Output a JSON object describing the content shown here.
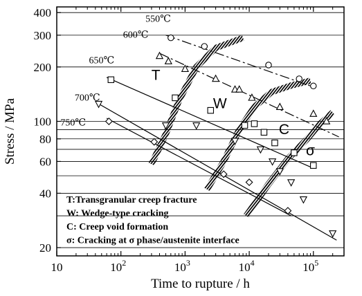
{
  "chart_data": {
    "type": "scatter",
    "xlabel": "Time to rupture / h",
    "ylabel": "Stress / MPa",
    "x_scale": "log",
    "y_scale": "log",
    "xlim": [
      10,
      300000
    ],
    "ylim": [
      18,
      430
    ],
    "grid": "horizontal",
    "x_ticks": [
      {
        "value": 10,
        "base": "10",
        "exp": ""
      },
      {
        "value": 100,
        "base": "10",
        "exp": "2"
      },
      {
        "value": 1000,
        "base": "10",
        "exp": "3"
      },
      {
        "value": 10000,
        "base": "10",
        "exp": "4"
      },
      {
        "value": 100000,
        "base": "10",
        "exp": "5"
      }
    ],
    "y_ticks": [
      {
        "value": 20,
        "label": "20"
      },
      {
        "value": 40,
        "label": "40"
      },
      {
        "value": 60,
        "label": "60"
      },
      {
        "value": 80,
        "label": "80"
      },
      {
        "value": 100,
        "label": "100"
      },
      {
        "value": 200,
        "label": "200"
      },
      {
        "value": 300,
        "label": "300"
      },
      {
        "value": 400,
        "label": "400"
      }
    ],
    "y_grid_lines": [
      20,
      30,
      40,
      50,
      60,
      70,
      80,
      90,
      100,
      200,
      300,
      400
    ],
    "series": [
      {
        "name": "550℃",
        "marker": "circle",
        "line": "dashdot",
        "label_at": [
          380,
          355
        ],
        "points": [
          [
            600,
            290
          ],
          [
            2000,
            260
          ],
          [
            20000,
            205
          ],
          [
            60000,
            172
          ],
          [
            100000,
            157
          ]
        ],
        "fit": [
          [
            500,
            300
          ],
          [
            100000,
            155
          ]
        ]
      },
      {
        "name": "600℃",
        "marker": "triangle",
        "line": "dashdot",
        "label_at": [
          170,
          290
        ],
        "points": [
          [
            400,
            230
          ],
          [
            550,
            215
          ],
          [
            1000,
            195
          ],
          [
            3000,
            172
          ],
          [
            6000,
            150
          ],
          [
            7000,
            150
          ],
          [
            11000,
            135
          ],
          [
            30000,
            120
          ],
          [
            100000,
            110
          ],
          [
            160000,
            100
          ]
        ],
        "fit": [
          [
            400,
            238
          ],
          [
            250000,
            82
          ]
        ]
      },
      {
        "name": "650℃",
        "marker": "square",
        "line": "solid",
        "label_at": [
          50,
          210
        ],
        "points": [
          [
            70,
            170
          ],
          [
            700,
            135
          ],
          [
            2500,
            115
          ],
          [
            8500,
            95
          ],
          [
            12000,
            97
          ],
          [
            17000,
            87
          ],
          [
            25000,
            76
          ],
          [
            50000,
            67
          ],
          [
            100000,
            57
          ]
        ],
        "fit": [
          [
            60,
            175
          ],
          [
            100000,
            55
          ]
        ]
      },
      {
        "name": "700℃",
        "marker": "triangle-down",
        "line": "solid",
        "label_at": [
          30,
          130
        ],
        "points": [
          [
            45,
            125
          ],
          [
            500,
            95
          ],
          [
            1500,
            95
          ],
          [
            6000,
            78
          ],
          [
            15000,
            70
          ],
          [
            23000,
            60
          ],
          [
            30000,
            53
          ],
          [
            45000,
            46
          ],
          [
            70000,
            37
          ],
          [
            200000,
            24
          ]
        ],
        "fit": [
          [
            45,
            125
          ],
          [
            230000,
            22
          ]
        ]
      },
      {
        "name": "750℃",
        "marker": "diamond",
        "line": "solid",
        "label_at": [
          18,
          95
        ],
        "points": [
          [
            65,
            100
          ],
          [
            330,
            77
          ],
          [
            4000,
            51
          ],
          [
            10000,
            46
          ],
          [
            40000,
            32
          ]
        ],
        "fit": [
          [
            60,
            104
          ],
          [
            45000,
            30
          ]
        ]
      }
    ],
    "regions": [
      {
        "label": "T",
        "at": [
          350,
          170
        ]
      },
      {
        "label": "W",
        "at": [
          3500,
          118
        ]
      },
      {
        "label": "C",
        "at": [
          35000,
          85
        ]
      },
      {
        "label": "σ",
        "at": [
          90000,
          65
        ]
      }
    ],
    "boundaries": [
      [
        [
          300,
          58
        ],
        [
          500,
          85
        ],
        [
          800,
          130
        ],
        [
          1500,
          200
        ],
        [
          3000,
          255
        ],
        [
          8000,
          290
        ]
      ],
      [
        [
          2200,
          42
        ],
        [
          4000,
          60
        ],
        [
          7000,
          90
        ],
        [
          12000,
          120
        ],
        [
          22000,
          145
        ],
        [
          45000,
          158
        ],
        [
          90000,
          168
        ]
      ],
      [
        [
          9000,
          30
        ],
        [
          20000,
          45
        ],
        [
          40000,
          62
        ],
        [
          80000,
          80
        ],
        [
          120000,
          95
        ],
        [
          200000,
          112
        ]
      ]
    ],
    "legend": {
      "position": "bottom-left",
      "entries": [
        "T:Transgranular creep fracture",
        "W: Wedge-type cracking",
        "C: Creep void formation",
        "σ: Cracking at σ phase/austenite interface"
      ]
    }
  }
}
